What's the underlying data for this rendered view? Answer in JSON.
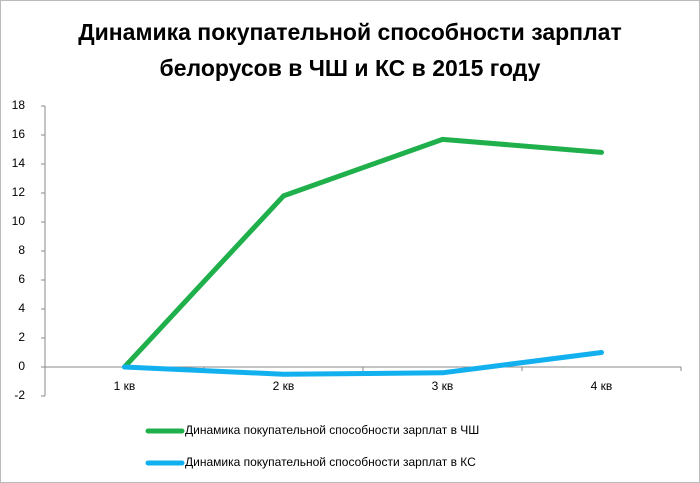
{
  "chart_data": {
    "type": "line",
    "title": "Динамика покупательной способности зарплат белорусов в ЧШ и КС в 2015 году",
    "categories": [
      "1 кв",
      "2 кв",
      "3 кв",
      "4 кв"
    ],
    "series": [
      {
        "name": "Динамика покупательной способности зарплат в ЧШ",
        "color": "#1fb04c",
        "values": [
          0,
          11.8,
          15.7,
          14.8
        ]
      },
      {
        "name": "Динамика покупательной способности зарплат в КС",
        "color": "#12b0ee",
        "values": [
          0,
          -0.5,
          -0.4,
          1.0
        ]
      }
    ],
    "ylim": [
      -2,
      18
    ],
    "yticks": [
      -2,
      0,
      2,
      4,
      6,
      8,
      10,
      12,
      14,
      16,
      18
    ],
    "grid": false,
    "legend": "bottom"
  }
}
